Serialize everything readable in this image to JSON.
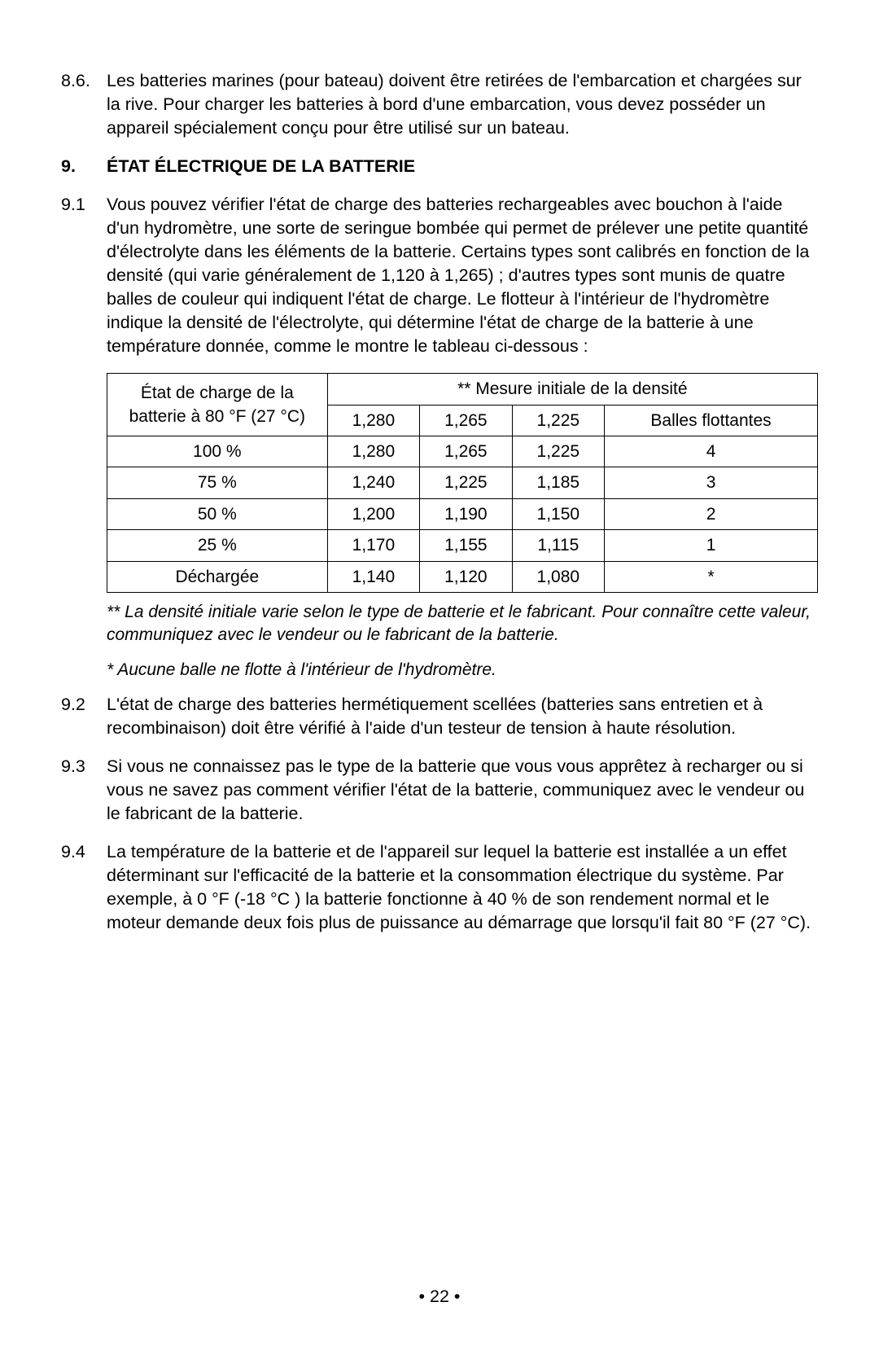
{
  "section8": {
    "item6": {
      "num": "8.6.",
      "text": "Les batteries marines (pour bateau) doivent être retirées de l'embarcation et chargées sur la rive. Pour charger les batteries à bord d'une embarcation, vous devez posséder un appareil spécialement conçu pour être utilisé sur un bateau."
    }
  },
  "section9": {
    "heading_num": "9.",
    "heading_text": "ÉTAT ÉLECTRIQUE DE LA BATTERIE",
    "item1": {
      "num": "9.1",
      "text": "Vous pouvez vérifier l'état de charge des batteries rechargeables avec bouchon à l'aide d'un hydromètre, une sorte de seringue bombée qui permet de prélever une petite quantité d'électrolyte dans les éléments de la batterie. Certains types sont calibrés en fonction de la densité (qui varie généralement de 1,120 à 1,265) ; d'autres types sont munis de quatre balles de couleur qui indiquent l'état de charge. Le flotteur à l'intérieur de l'hydromètre indique la densité de l'électrolyte, qui détermine l'état de charge de la batterie à une température donnée, comme le montre le tableau ci-dessous :"
    },
    "item2": {
      "num": "9.2",
      "text": "L'état de charge des batteries hermétiquement scellées (batteries sans entretien et à recombinaison) doit être vérifié à l'aide d'un testeur de tension à haute résolution."
    },
    "item3": {
      "num": "9.3",
      "text": "Si vous ne connaissez pas le type de la batterie que vous vous apprêtez à recharger ou si vous ne savez pas comment vérifier l'état de la batterie, communiquez avec le vendeur ou le fabricant de la batterie."
    },
    "item4": {
      "num": "9.4",
      "text": "La température de la batterie et de l'appareil sur lequel la batterie est installée a un effet déterminant sur l'efficacité de la batterie et la consommation électrique du système. Par exemple, à 0 °F (-18 °C ) la batterie fonctionne à 40 % de son rendement normal et le moteur demande deux fois plus de puissance au démarrage que lorsqu'il fait 80 °F (27 °C)."
    }
  },
  "table": {
    "header_left": "État de charge de la batterie à 80 °F (27 °C)",
    "header_right": "** Mesure initiale de la densité",
    "sub_headers": [
      "1,280",
      "1,265",
      "1,225",
      "Balles flottantes"
    ],
    "rows": [
      [
        "100 %",
        "1,280",
        "1,265",
        "1,225",
        "4"
      ],
      [
        "75 %",
        "1,240",
        "1,225",
        "1,185",
        "3"
      ],
      [
        "50 %",
        "1,200",
        "1,190",
        "1,150",
        "2"
      ],
      [
        "25 %",
        "1,170",
        "1,155",
        "1,115",
        "1"
      ],
      [
        "Déchargée",
        "1,140",
        "1,120",
        "1,080",
        "*"
      ]
    ],
    "col_widths": [
      "31%",
      "13%",
      "13%",
      "13%",
      "30%"
    ]
  },
  "footnotes": {
    "one": "** La densité initiale varie selon le type de batterie et le fabricant. Pour connaître cette valeur, communiquez avec le vendeur ou le fabricant de la batterie.",
    "two": "* Aucune balle ne flotte à l'intérieur de l'hydromètre."
  },
  "page_number": "• 22 •"
}
